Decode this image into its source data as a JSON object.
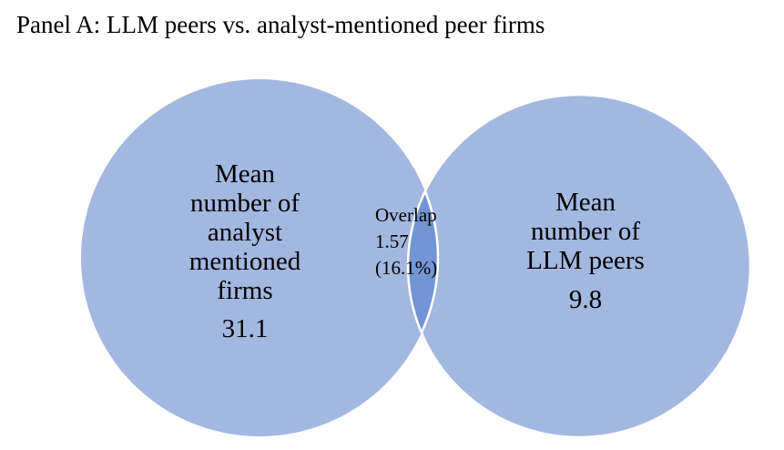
{
  "title": "Panel A: LLM peers vs. analyst-mentioned peer firms",
  "colors": {
    "circle_fill": "#a3b8e0",
    "overlap_fill": "#7395d3",
    "outline": "#ffffff"
  },
  "left_set": {
    "label_lines": [
      "Mean",
      "number of",
      "analyst",
      "mentioned",
      "firms"
    ],
    "value": "31.1"
  },
  "right_set": {
    "label_lines": [
      "Mean",
      "number of",
      "LLM peers"
    ],
    "value": "9.8"
  },
  "overlap": {
    "label": "Overlap",
    "value": "1.57",
    "percent": "(16.1%)"
  }
}
